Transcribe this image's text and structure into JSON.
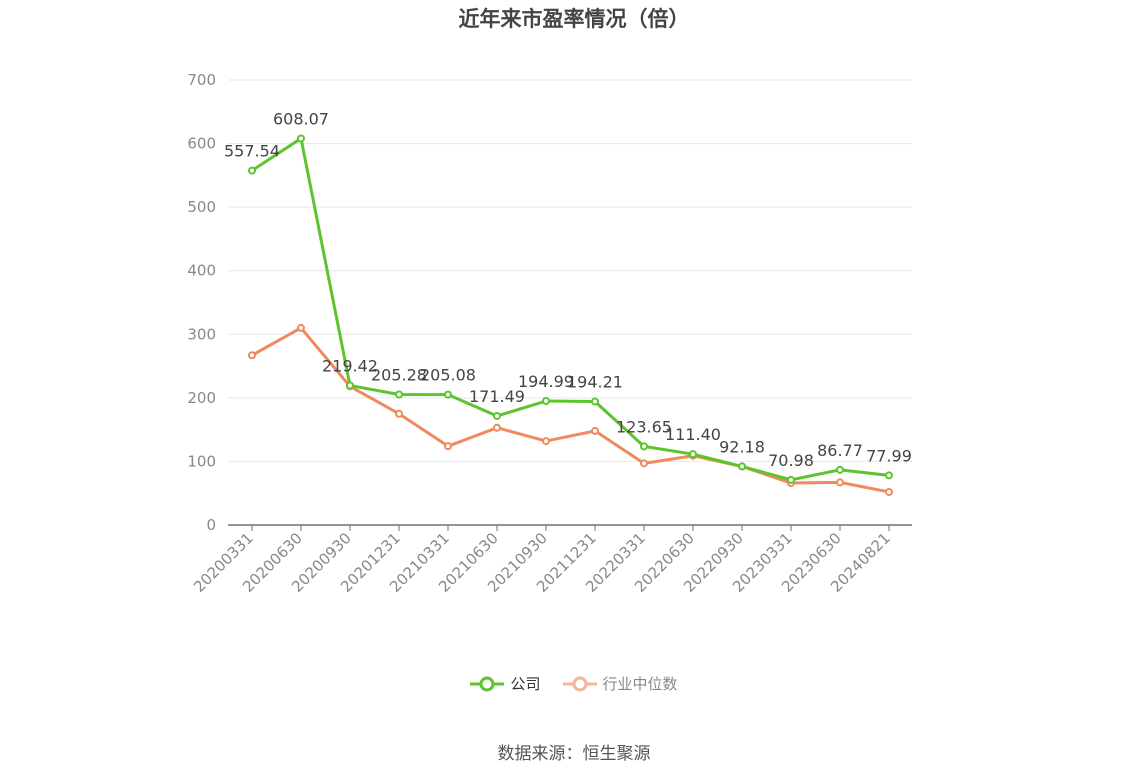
{
  "title": "近年来市盈率情况（倍）",
  "source": "数据来源：恒生聚源",
  "chart_data": {
    "type": "line",
    "title": "近年来市盈率情况（倍）",
    "categories": [
      "20200331",
      "20200630",
      "20200930",
      "20201231",
      "20210331",
      "20210630",
      "20210930",
      "20211231",
      "20220331",
      "20220630",
      "20220930",
      "20230331",
      "20230630",
      "20240821"
    ],
    "series": [
      {
        "name": "公司",
        "color": "#5cc42d",
        "values": [
          557.54,
          608.07,
          219.42,
          205.28,
          205.08,
          171.49,
          194.99,
          194.21,
          123.65,
          111.4,
          92.18,
          70.98,
          86.77,
          77.99
        ],
        "labels": [
          "557.54",
          "608.07",
          "219.42",
          "205.28",
          "205.08",
          "171.49",
          "194.99",
          "194.21",
          "123.65",
          "111.40",
          "92.18",
          "70.98",
          "86.77",
          "77.99"
        ]
      },
      {
        "name": "行业中位数",
        "color": "#f08a5d",
        "values": [
          267,
          310,
          218,
          175,
          124,
          153,
          132,
          148,
          97,
          109,
          92,
          66,
          67,
          52
        ]
      }
    ],
    "ylim": [
      0,
      700
    ],
    "yticks": [
      "0",
      "100",
      "200",
      "300",
      "400",
      "500",
      "600",
      "700"
    ],
    "grid": true,
    "legend_position": "bottom"
  }
}
